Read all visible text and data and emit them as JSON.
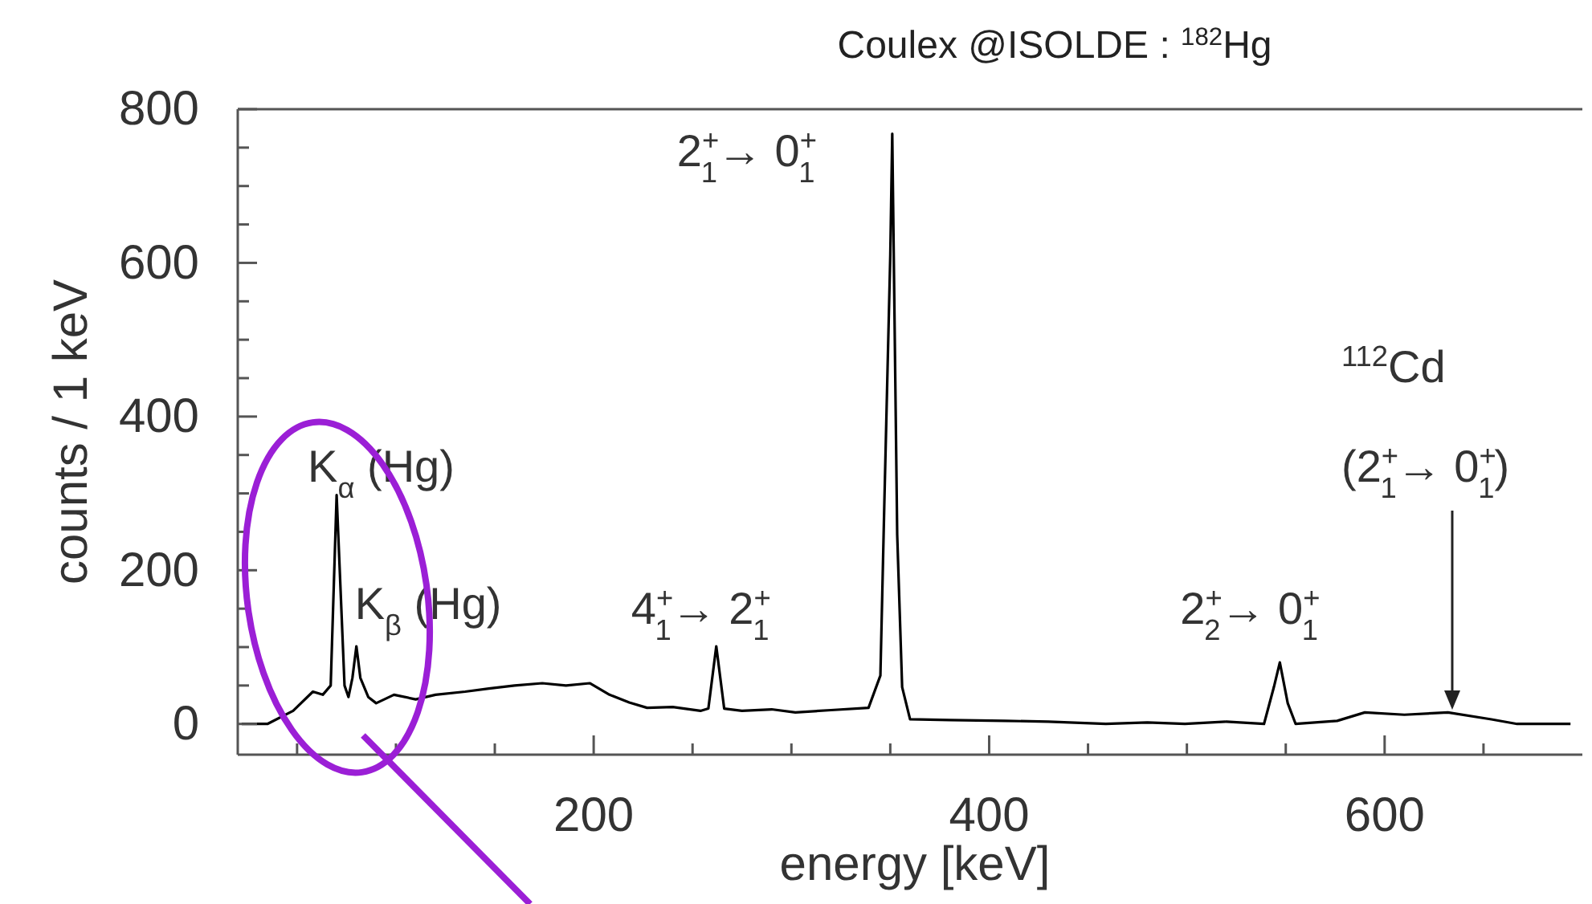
{
  "chart_data": {
    "type": "line",
    "title": "Coulex @ISOLDE : $^{182}$Hg",
    "xlabel": "energy [keV]",
    "ylabel": "counts / 1 keV",
    "xlim": [
      20,
      700
    ],
    "ylim": [
      -40,
      800
    ],
    "xticks": [
      {
        "value": 50,
        "label": null
      },
      {
        "value": 100,
        "label": null
      },
      {
        "value": 150,
        "label": null
      },
      200,
      {
        "value": 250,
        "label": null
      },
      {
        "value": 300,
        "label": null
      },
      {
        "value": 350,
        "label": null
      },
      400,
      {
        "value": 450,
        "label": null
      },
      {
        "value": 500,
        "label": null
      },
      {
        "value": 550,
        "label": null
      },
      600,
      {
        "value": 650,
        "label": null
      }
    ],
    "yticks": [
      0,
      {
        "value": 50,
        "label": null
      },
      {
        "value": 100,
        "label": null
      },
      {
        "value": 150,
        "label": null
      },
      200,
      {
        "value": 250,
        "label": null
      },
      {
        "value": 300,
        "label": null
      },
      {
        "value": 350,
        "label": null
      },
      400,
      {
        "value": 450,
        "label": null
      },
      {
        "value": 500,
        "label": null
      },
      {
        "value": 550,
        "label": null
      },
      600,
      {
        "value": 650,
        "label": null
      },
      {
        "value": 700,
        "label": null
      },
      {
        "value": 750,
        "label": null
      },
      800
    ],
    "grid": false,
    "marker": "none",
    "line_style": "solid",
    "series": [
      {
        "color": "#000000",
        "x": [
          22,
          35,
          48,
          58,
          63,
          67,
          70,
          74,
          76,
          78,
          80,
          82,
          86,
          90,
          99,
          110,
          120,
          135,
          147,
          160,
          174,
          186,
          198,
          208,
          218,
          227,
          240,
          254,
          258,
          262,
          266,
          275,
          290,
          302,
          320,
          339,
          345,
          347,
          350,
          351,
          353.5,
          356,
          360,
          380,
          408,
          430,
          459,
          480,
          499,
          520,
          539,
          544,
          547,
          551,
          555,
          576,
          590,
          610,
          632,
          654,
          667,
          694
        ],
        "values": [
          0,
          0,
          17,
          42,
          38,
          50,
          298,
          50,
          35,
          60,
          101,
          60,
          35,
          27,
          38,
          32,
          38,
          42,
          46,
          50,
          53,
          50,
          53,
          38,
          28,
          21,
          22,
          17,
          20,
          101,
          20,
          17,
          19,
          15,
          18,
          21,
          63,
          288,
          610,
          768,
          246,
          48,
          6,
          5,
          4,
          3,
          0,
          2,
          0,
          3,
          0,
          48,
          80,
          27,
          0,
          4,
          15,
          12,
          15,
          6,
          0,
          0
        ]
      }
    ],
    "annotations": [
      {
        "text": "K$_{α}$ (Hg)",
        "x": 70,
        "y": 298
      },
      {
        "text": "K$_{β}$ (Hg)",
        "x": 80,
        "y": 101
      },
      {
        "text": "4$^{+}$$_{1}$→ 2$^{+}$$_{1}$",
        "x": 262,
        "y": 101
      },
      {
        "text": "2$^{+}$$_{1}$→ 0$^{+}$$_{1}$",
        "x": 351,
        "y": 768
      },
      {
        "text": "2$^{+}$$_{2}$→ 0$^{+}$$_{1}$",
        "x": 547,
        "y": 80
      },
      "$^{112}$Cd",
      "(2$^{+}$$_{1}$→ 0$^{+}$$_{1}$)"
    ]
  }
}
